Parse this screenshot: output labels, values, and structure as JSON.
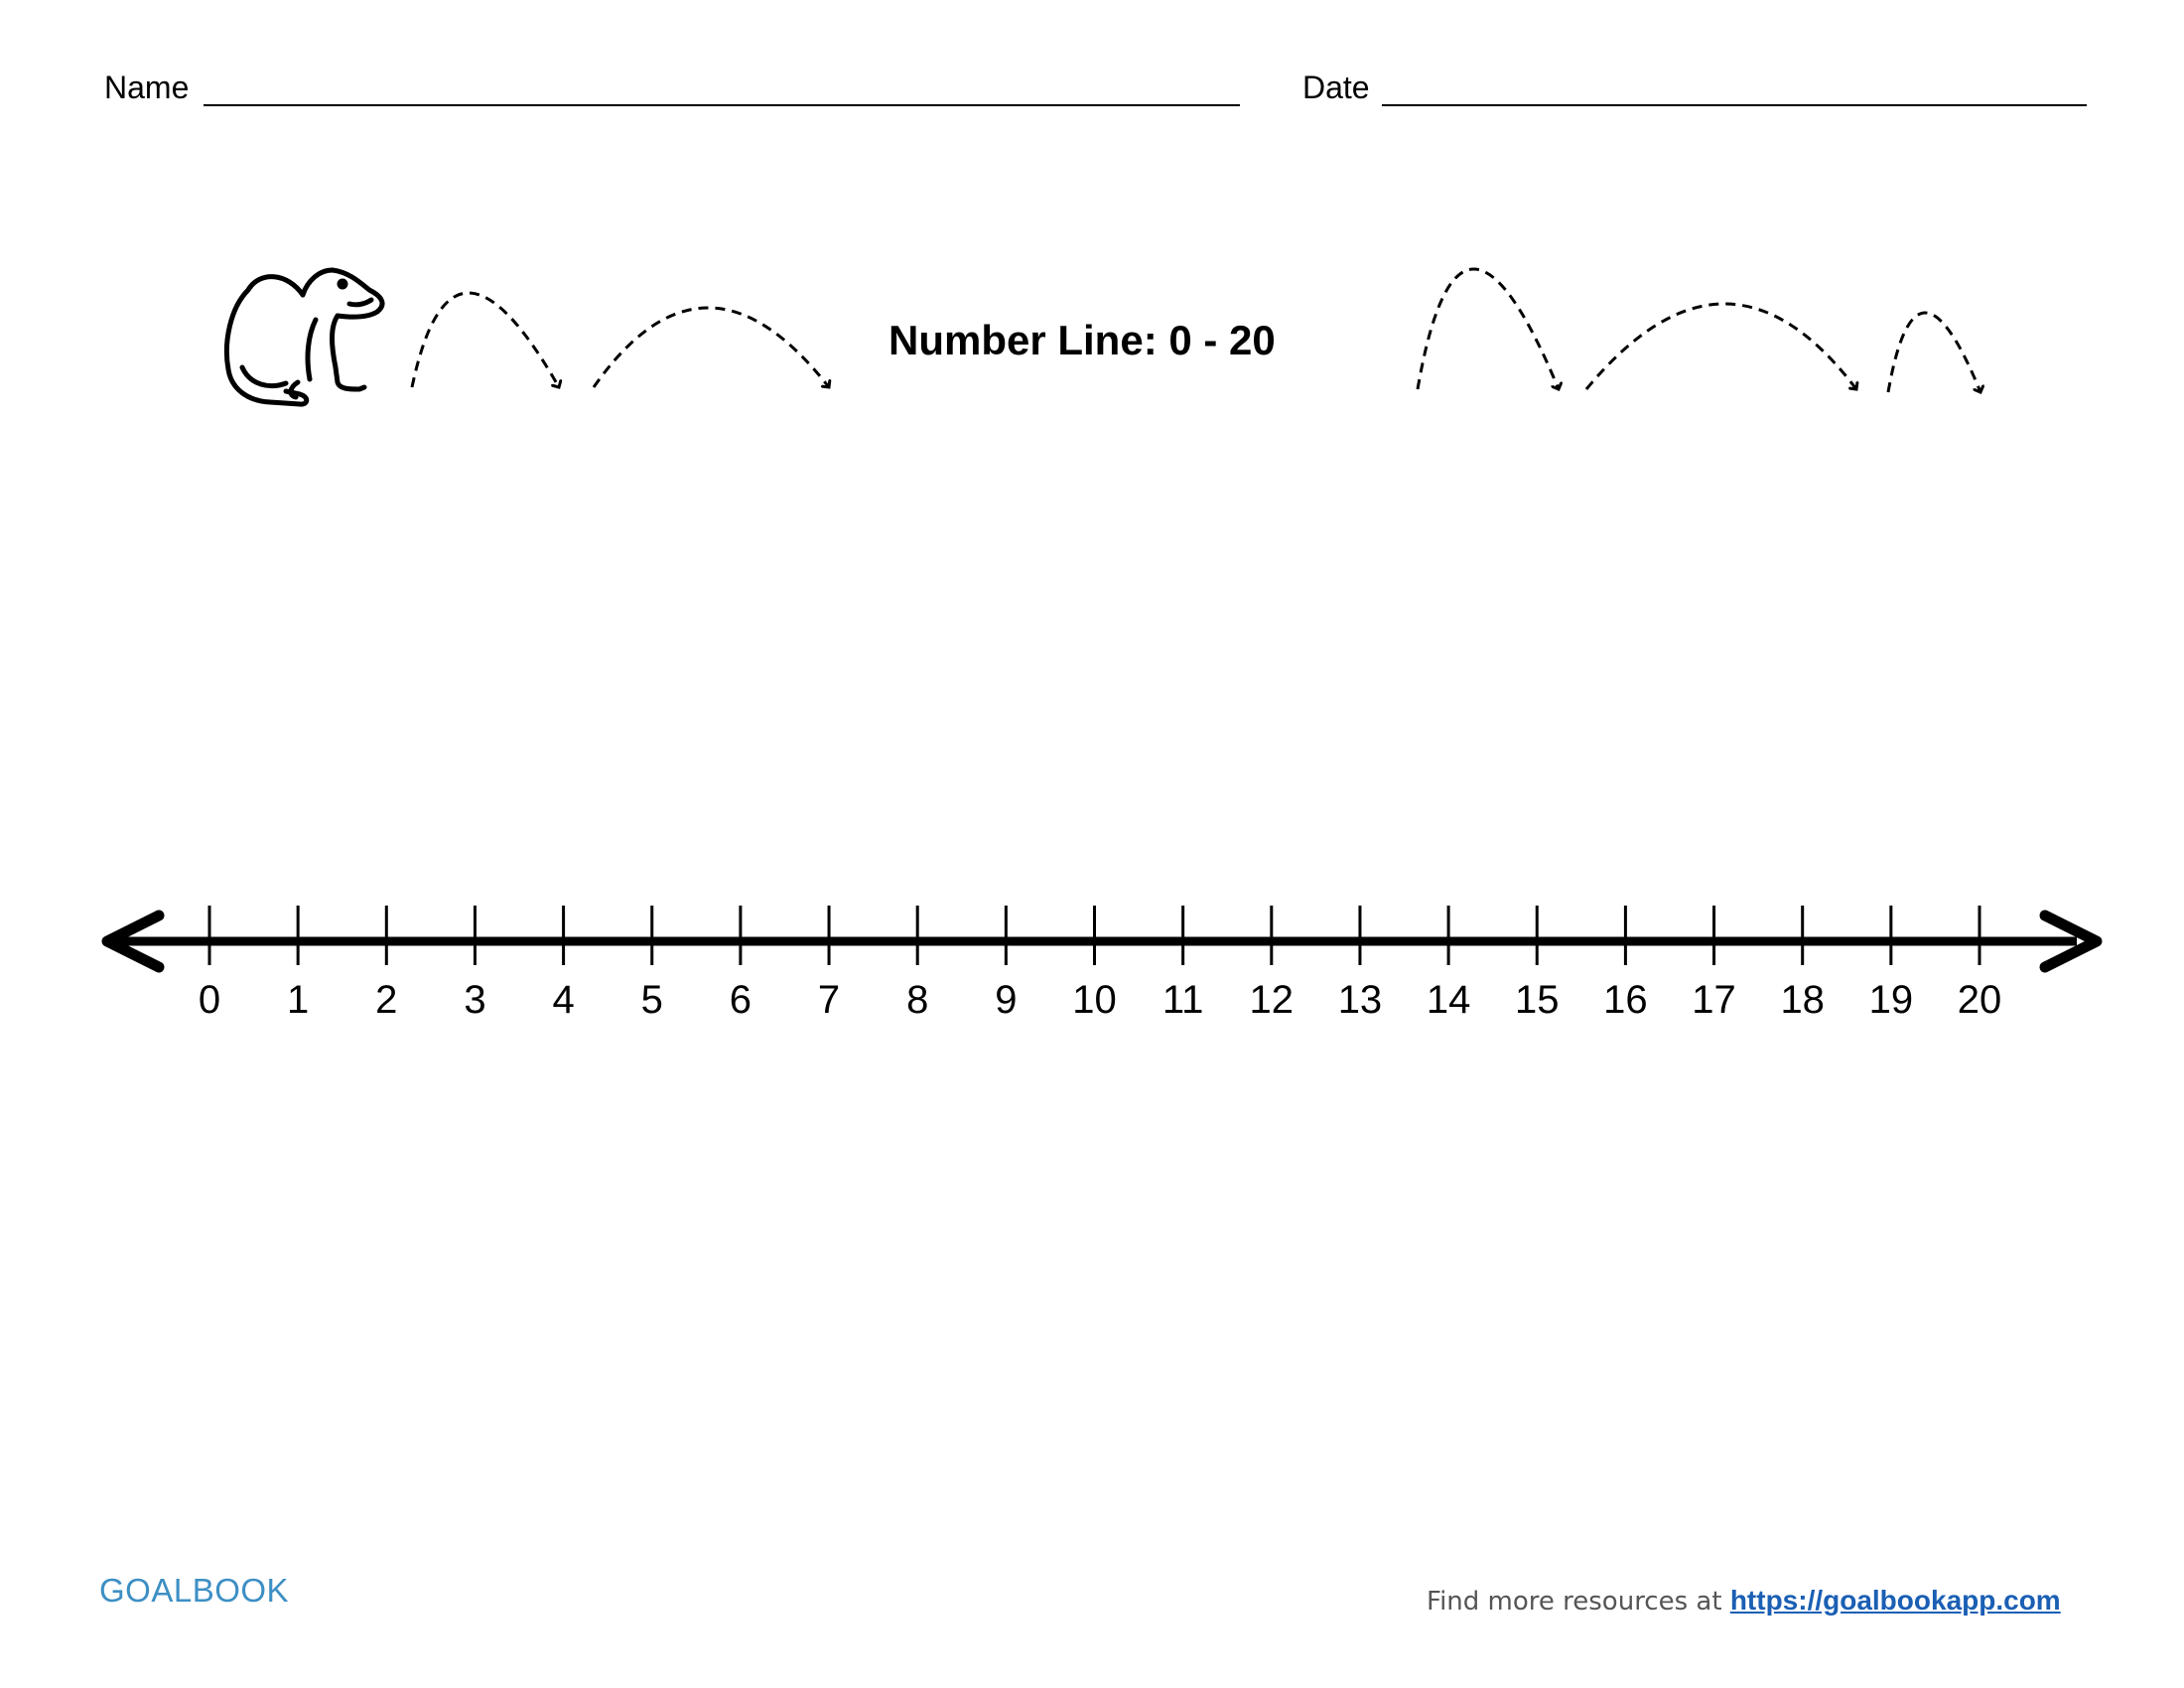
{
  "header": {
    "name_label": "Name",
    "date_label": "Date"
  },
  "title": "Number Line: 0 - 20",
  "number_line": {
    "min": 0,
    "max": 20,
    "labels": [
      "0",
      "1",
      "2",
      "3",
      "4",
      "5",
      "6",
      "7",
      "8",
      "9",
      "10",
      "11",
      "12",
      "13",
      "14",
      "15",
      "16",
      "17",
      "18",
      "19",
      "20"
    ]
  },
  "decoration": {
    "icon": "frog-icon",
    "jump_arrows": "dashed-jump-arrows"
  },
  "footer": {
    "logo_text": "GOALBOOK",
    "resources_text": "Find more resources at ",
    "link_text": "https://goalbookapp.com"
  },
  "colors": {
    "logo": "#3d8fc4",
    "link": "#1a5fb4",
    "footer_text": "#555555"
  }
}
